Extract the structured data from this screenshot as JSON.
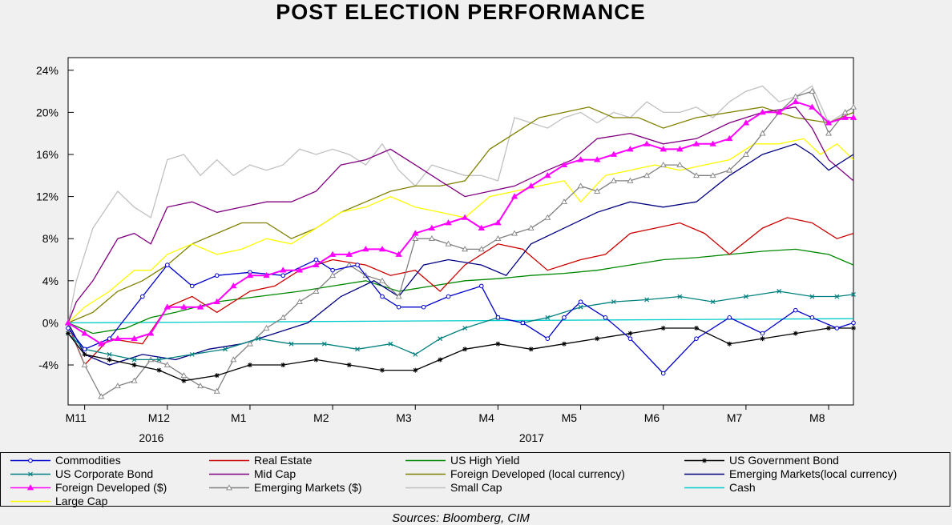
{
  "chart_data": {
    "type": "line",
    "title": "POST ELECTION PERFORMANCE",
    "source": "Sources: Bloomberg, CIM",
    "y_axis": {
      "ticks": [
        "24%",
        "20%",
        "16%",
        "12%",
        "8%",
        "4%",
        "0%",
        "-4%"
      ],
      "tick_values": [
        24,
        20,
        16,
        12,
        8,
        4,
        0,
        -4
      ],
      "ylim": [
        -7.8,
        25.2
      ]
    },
    "x_axis": {
      "ticks": [
        "M11",
        "M12",
        "M1",
        "M2",
        "M3",
        "M4",
        "M5",
        "M6",
        "M7",
        "M8"
      ],
      "tick_positions": [
        0.2,
        1.2,
        2.2,
        3.2,
        4.2,
        5.2,
        6.2,
        7.2,
        8.2,
        9.2
      ],
      "years": [
        {
          "label": "2016",
          "pos": 1.05
        },
        {
          "label": "2017",
          "pos": 5.65
        }
      ],
      "xlim": [
        0,
        9.5
      ]
    },
    "series": [
      {
        "name": "Commodities",
        "color": "#0000cc",
        "marker": "circle",
        "x": [
          0,
          0.2,
          0.5,
          0.9,
          1.2,
          1.5,
          1.8,
          2.2,
          2.6,
          3.0,
          3.2,
          3.5,
          3.8,
          4.0,
          4.3,
          4.6,
          5.0,
          5.2,
          5.5,
          5.8,
          6.0,
          6.2,
          6.5,
          6.8,
          7.2,
          7.6,
          8.0,
          8.4,
          8.8,
          9.0,
          9.3,
          9.5
        ],
        "y": [
          -0.5,
          -2.5,
          -1.5,
          2.5,
          5.5,
          3.5,
          4.5,
          4.8,
          4.5,
          6.0,
          5.0,
          5.5,
          2.5,
          1.5,
          1.5,
          2.5,
          3.5,
          0.5,
          0.0,
          -1.5,
          0.5,
          2.0,
          0.5,
          -1.5,
          -4.8,
          -1.5,
          0.5,
          -1.0,
          1.2,
          0.5,
          -0.5,
          0.0
        ]
      },
      {
        "name": "Real Estate",
        "color": "#cc0000",
        "marker": "none",
        "x": [
          0,
          0.2,
          0.5,
          0.9,
          1.2,
          1.5,
          1.8,
          2.2,
          2.5,
          2.8,
          3.2,
          3.6,
          3.9,
          4.2,
          4.5,
          4.8,
          5.2,
          5.5,
          5.8,
          6.0,
          6.2,
          6.5,
          6.8,
          7.1,
          7.4,
          7.7,
          8.0,
          8.4,
          8.7,
          9.0,
          9.3,
          9.5
        ],
        "y": [
          -0.2,
          -4.0,
          -1.5,
          -2.0,
          1.5,
          2.5,
          1.0,
          3.0,
          3.5,
          5.0,
          6.0,
          5.5,
          4.5,
          5.0,
          3.0,
          5.5,
          7.5,
          7.0,
          5.0,
          5.5,
          6.0,
          6.5,
          8.5,
          9.0,
          9.5,
          8.5,
          6.5,
          9.0,
          10.0,
          9.5,
          8.0,
          8.5
        ]
      },
      {
        "name": "US High Yield",
        "color": "#008800",
        "marker": "none",
        "x": [
          0,
          0.3,
          0.7,
          1.0,
          1.3,
          1.8,
          2.3,
          2.8,
          3.2,
          3.6,
          4.0,
          4.4,
          4.8,
          5.2,
          5.6,
          6.0,
          6.4,
          6.8,
          7.2,
          7.6,
          8.0,
          8.4,
          8.8,
          9.2,
          9.5
        ],
        "y": [
          0.0,
          -1.0,
          -0.5,
          0.5,
          1.0,
          2.0,
          2.5,
          3.0,
          3.5,
          4.0,
          3.0,
          3.5,
          4.0,
          4.2,
          4.5,
          4.7,
          5.0,
          5.5,
          6.0,
          6.2,
          6.5,
          6.8,
          7.0,
          6.5,
          5.5
        ]
      },
      {
        "name": "US Government Bond",
        "color": "#000000",
        "marker": "star",
        "x": [
          0,
          0.2,
          0.5,
          0.8,
          1.1,
          1.4,
          1.8,
          2.2,
          2.6,
          3.0,
          3.4,
          3.8,
          4.2,
          4.5,
          4.8,
          5.2,
          5.6,
          6.0,
          6.4,
          6.8,
          7.2,
          7.6,
          8.0,
          8.4,
          8.8,
          9.2,
          9.5
        ],
        "y": [
          -1.0,
          -3.0,
          -3.5,
          -4.0,
          -4.5,
          -5.5,
          -5.0,
          -4.0,
          -4.0,
          -3.5,
          -4.0,
          -4.5,
          -4.5,
          -3.5,
          -2.5,
          -2.0,
          -2.5,
          -2.0,
          -1.5,
          -1.0,
          -0.5,
          -0.5,
          -2.0,
          -1.5,
          -1.0,
          -0.5,
          -0.5
        ]
      },
      {
        "name": "US Corporate Bond",
        "color": "#008080",
        "marker": "x",
        "x": [
          0,
          0.2,
          0.5,
          0.8,
          1.1,
          1.5,
          1.9,
          2.3,
          2.7,
          3.1,
          3.5,
          3.9,
          4.2,
          4.5,
          4.8,
          5.2,
          5.5,
          5.8,
          6.2,
          6.6,
          7.0,
          7.4,
          7.8,
          8.2,
          8.6,
          9.0,
          9.3,
          9.5
        ],
        "y": [
          -1.0,
          -2.5,
          -3.0,
          -3.5,
          -3.5,
          -3.0,
          -2.5,
          -1.5,
          -2.0,
          -2.0,
          -2.5,
          -2.0,
          -3.0,
          -1.5,
          -0.5,
          0.5,
          0.0,
          0.5,
          1.5,
          2.0,
          2.2,
          2.5,
          2.0,
          2.5,
          3.0,
          2.5,
          2.5,
          2.7
        ]
      },
      {
        "name": "Mid Cap",
        "color": "#800080",
        "marker": "none",
        "x": [
          0,
          0.1,
          0.3,
          0.6,
          0.8,
          1.0,
          1.2,
          1.5,
          1.8,
          2.1,
          2.4,
          2.7,
          3.0,
          3.3,
          3.6,
          3.9,
          4.2,
          4.5,
          4.8,
          5.1,
          5.4,
          5.8,
          6.1,
          6.4,
          6.8,
          7.2,
          7.6,
          8.0,
          8.4,
          8.8,
          9.0,
          9.2,
          9.5
        ],
        "y": [
          0.0,
          2.0,
          4.0,
          8.0,
          8.5,
          7.5,
          11.0,
          11.5,
          10.5,
          11.0,
          11.5,
          11.5,
          12.5,
          15.0,
          15.5,
          16.5,
          15.0,
          13.5,
          12.0,
          12.5,
          13.0,
          14.5,
          15.5,
          17.5,
          18.0,
          17.0,
          17.5,
          19.0,
          20.0,
          20.5,
          18.5,
          15.5,
          13.5
        ]
      },
      {
        "name": "Foreign Developed (local currency)",
        "color": "#808000",
        "marker": "none",
        "x": [
          0,
          0.3,
          0.6,
          0.9,
          1.2,
          1.5,
          1.8,
          2.1,
          2.4,
          2.7,
          3.0,
          3.3,
          3.6,
          3.9,
          4.2,
          4.5,
          4.8,
          5.1,
          5.4,
          5.7,
          6.0,
          6.3,
          6.6,
          6.9,
          7.2,
          7.6,
          8.0,
          8.4,
          8.8,
          9.2,
          9.5
        ],
        "y": [
          0.0,
          1.0,
          3.0,
          4.0,
          5.5,
          7.5,
          8.5,
          9.5,
          9.5,
          8.0,
          9.0,
          10.5,
          11.5,
          12.5,
          13.0,
          13.0,
          13.5,
          16.5,
          18.0,
          19.5,
          20.0,
          20.5,
          19.5,
          19.5,
          18.5,
          19.5,
          20.0,
          20.5,
          19.5,
          19.0,
          20.0
        ]
      },
      {
        "name": "Emerging Markets(local currency)",
        "color": "#000080",
        "marker": "none",
        "x": [
          0,
          0.2,
          0.5,
          0.9,
          1.3,
          1.7,
          2.1,
          2.5,
          2.9,
          3.3,
          3.7,
          4.0,
          4.3,
          4.6,
          5.0,
          5.3,
          5.6,
          6.0,
          6.4,
          6.8,
          7.2,
          7.6,
          8.0,
          8.4,
          8.8,
          9.0,
          9.2,
          9.5
        ],
        "y": [
          0.0,
          -3.0,
          -4.0,
          -3.0,
          -3.5,
          -2.5,
          -2.0,
          -1.0,
          0.0,
          2.5,
          4.0,
          2.5,
          5.5,
          6.0,
          5.5,
          4.5,
          7.5,
          9.0,
          10.5,
          11.5,
          11.0,
          11.5,
          14.0,
          16.0,
          17.0,
          16.0,
          14.5,
          16.0
        ]
      },
      {
        "name": "Foreign Developed ($)",
        "color": "#ff00ff",
        "marker": "triangle-filled",
        "x": [
          0,
          0.2,
          0.4,
          0.6,
          0.8,
          1.0,
          1.2,
          1.4,
          1.6,
          1.8,
          2.0,
          2.2,
          2.4,
          2.6,
          2.8,
          3.0,
          3.2,
          3.4,
          3.6,
          3.8,
          4.0,
          4.2,
          4.4,
          4.6,
          4.8,
          5.0,
          5.2,
          5.4,
          5.6,
          5.8,
          6.0,
          6.2,
          6.4,
          6.6,
          6.8,
          7.0,
          7.2,
          7.4,
          7.6,
          7.8,
          8.0,
          8.2,
          8.4,
          8.6,
          8.8,
          9.0,
          9.2,
          9.4,
          9.5
        ],
        "y": [
          0.0,
          -1.0,
          -2.0,
          -1.5,
          -1.5,
          -1.0,
          1.5,
          1.5,
          1.5,
          2.0,
          3.5,
          4.5,
          4.5,
          5.0,
          5.0,
          5.5,
          6.5,
          6.5,
          7.0,
          7.0,
          6.5,
          8.5,
          9.0,
          9.5,
          10.0,
          9.0,
          9.5,
          12.0,
          13.0,
          14.0,
          15.0,
          15.5,
          15.5,
          16.0,
          16.5,
          17.0,
          16.5,
          16.5,
          17.0,
          17.0,
          17.5,
          19.0,
          20.0,
          20.0,
          21.0,
          20.5,
          19.0,
          19.5,
          19.5
        ]
      },
      {
        "name": "Emerging Markets ($)",
        "color": "#808080",
        "marker": "triangle",
        "x": [
          0,
          0.2,
          0.4,
          0.6,
          0.8,
          1.0,
          1.2,
          1.4,
          1.6,
          1.8,
          2.0,
          2.2,
          2.4,
          2.6,
          2.8,
          3.0,
          3.2,
          3.4,
          3.6,
          3.8,
          4.0,
          4.2,
          4.4,
          4.6,
          4.8,
          5.0,
          5.2,
          5.4,
          5.6,
          5.8,
          6.0,
          6.2,
          6.4,
          6.6,
          6.8,
          7.0,
          7.2,
          7.4,
          7.6,
          7.8,
          8.0,
          8.2,
          8.4,
          8.6,
          8.8,
          9.0,
          9.2,
          9.4,
          9.5
        ],
        "y": [
          0.0,
          -4.0,
          -7.0,
          -6.0,
          -5.5,
          -3.5,
          -4.0,
          -5.0,
          -6.0,
          -6.5,
          -3.5,
          -2.0,
          -0.5,
          0.5,
          2.0,
          3.0,
          4.5,
          5.5,
          4.5,
          4.0,
          2.5,
          8.0,
          8.0,
          7.5,
          7.0,
          7.0,
          8.0,
          8.5,
          9.0,
          10.0,
          11.5,
          13.0,
          12.5,
          13.5,
          13.5,
          14.0,
          15.0,
          15.0,
          14.0,
          14.0,
          14.5,
          16.0,
          18.0,
          20.0,
          21.5,
          22.0,
          18.0,
          20.0,
          20.5
        ]
      },
      {
        "name": "Small Cap",
        "color": "#c0c0c0",
        "marker": "none",
        "x": [
          0,
          0.1,
          0.3,
          0.6,
          0.8,
          1.0,
          1.2,
          1.4,
          1.6,
          1.8,
          2.0,
          2.2,
          2.4,
          2.6,
          2.8,
          3.0,
          3.2,
          3.4,
          3.6,
          3.8,
          4.0,
          4.2,
          4.4,
          4.6,
          4.8,
          5.0,
          5.2,
          5.4,
          5.6,
          5.8,
          6.0,
          6.2,
          6.4,
          6.6,
          6.8,
          7.0,
          7.2,
          7.4,
          7.6,
          7.8,
          8.0,
          8.2,
          8.4,
          8.6,
          8.8,
          9.0,
          9.2,
          9.4,
          9.5
        ],
        "y": [
          0.0,
          4.0,
          9.0,
          12.5,
          11.0,
          10.0,
          15.5,
          16.0,
          14.0,
          15.5,
          14.0,
          15.0,
          14.5,
          15.0,
          16.5,
          16.0,
          16.5,
          16.0,
          15.0,
          17.0,
          14.5,
          13.0,
          15.0,
          14.5,
          14.0,
          14.0,
          13.5,
          19.5,
          19.0,
          18.5,
          19.5,
          20.0,
          19.0,
          20.0,
          19.5,
          21.0,
          20.0,
          20.0,
          20.5,
          19.5,
          21.0,
          22.0,
          22.5,
          21.0,
          21.5,
          22.5,
          19.0,
          20.0,
          20.5
        ]
      },
      {
        "name": "Cash",
        "color": "#00cccc",
        "marker": "none",
        "x": [
          0,
          9.5
        ],
        "y": [
          0.0,
          0.4
        ]
      },
      {
        "name": "Large Cap",
        "color": "#ffff00",
        "marker": "none",
        "x": [
          0,
          0.2,
          0.5,
          0.8,
          1.0,
          1.2,
          1.5,
          1.8,
          2.1,
          2.4,
          2.7,
          3.0,
          3.3,
          3.6,
          3.9,
          4.2,
          4.5,
          4.8,
          5.1,
          5.4,
          5.7,
          6.0,
          6.2,
          6.5,
          6.8,
          7.1,
          7.4,
          7.7,
          8.0,
          8.3,
          8.6,
          8.9,
          9.1,
          9.3,
          9.5
        ],
        "y": [
          0.0,
          1.5,
          3.0,
          5.0,
          5.0,
          6.5,
          7.5,
          6.5,
          7.0,
          8.0,
          7.5,
          9.0,
          10.5,
          11.0,
          12.0,
          11.0,
          10.5,
          10.0,
          12.0,
          12.5,
          13.0,
          13.5,
          11.5,
          14.0,
          14.5,
          15.0,
          14.5,
          15.0,
          15.5,
          17.0,
          17.0,
          17.5,
          16.0,
          17.0,
          15.5
        ]
      }
    ]
  },
  "legend": [
    {
      "label": "Commodities",
      "series": 0
    },
    {
      "label": "Real Estate",
      "series": 1
    },
    {
      "label": "US High Yield",
      "series": 2
    },
    {
      "label": "US Government Bond",
      "series": 3
    },
    {
      "label": "US Corporate Bond",
      "series": 4
    },
    {
      "label": "Mid Cap",
      "series": 5
    },
    {
      "label": "Foreign Developed (local currency)",
      "series": 6
    },
    {
      "label": "Emerging Markets(local currency)",
      "series": 7
    },
    {
      "label": "Foreign Developed ($)",
      "series": 8
    },
    {
      "label": "Emerging Markets ($)",
      "series": 9
    },
    {
      "label": "Small Cap",
      "series": 10
    },
    {
      "label": "Cash",
      "series": 11
    },
    {
      "label": "Large Cap",
      "series": 12
    }
  ]
}
